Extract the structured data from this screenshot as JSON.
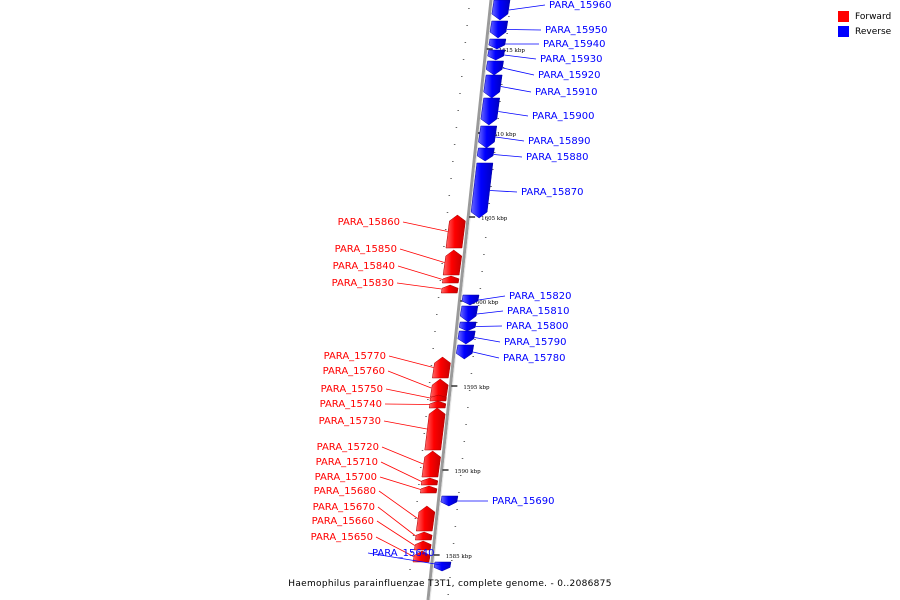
{
  "caption": "Haemophilus parainfluenzae T3T1, complete genome. - 0..2086875",
  "legend": [
    {
      "label": "Forward",
      "color": "#ff0000"
    },
    {
      "label": "Reverse",
      "color": "#0000ff"
    }
  ],
  "colors": {
    "forward": "#ff0000",
    "reverse": "#0000ff",
    "backbone": "#999999"
  },
  "ticks": [
    "1615 kbp",
    "1610 kbp",
    "1605 kbp",
    "1600 kbp",
    "1595 kbp",
    "1590 kbp",
    "1585 kbp"
  ],
  "genes": [
    {
      "label": "PARA_15960",
      "strand": "reverse"
    },
    {
      "label": "PARA_15950",
      "strand": "reverse"
    },
    {
      "label": "PARA_15940",
      "strand": "reverse"
    },
    {
      "label": "PARA_15930",
      "strand": "reverse"
    },
    {
      "label": "PARA_15920",
      "strand": "reverse"
    },
    {
      "label": "PARA_15910",
      "strand": "reverse"
    },
    {
      "label": "PARA_15900",
      "strand": "reverse"
    },
    {
      "label": "PARA_15890",
      "strand": "reverse"
    },
    {
      "label": "PARA_15880",
      "strand": "reverse"
    },
    {
      "label": "PARA_15870",
      "strand": "reverse"
    },
    {
      "label": "PARA_15860",
      "strand": "forward"
    },
    {
      "label": "PARA_15850",
      "strand": "forward"
    },
    {
      "label": "PARA_15840",
      "strand": "forward"
    },
    {
      "label": "PARA_15830",
      "strand": "forward"
    },
    {
      "label": "PARA_15820",
      "strand": "reverse"
    },
    {
      "label": "PARA_15810",
      "strand": "reverse"
    },
    {
      "label": "PARA_15800",
      "strand": "reverse"
    },
    {
      "label": "PARA_15790",
      "strand": "reverse"
    },
    {
      "label": "PARA_15780",
      "strand": "reverse"
    },
    {
      "label": "PARA_15770",
      "strand": "forward"
    },
    {
      "label": "PARA_15760",
      "strand": "forward"
    },
    {
      "label": "PARA_15750",
      "strand": "forward"
    },
    {
      "label": "PARA_15740",
      "strand": "forward"
    },
    {
      "label": "PARA_15730",
      "strand": "forward"
    },
    {
      "label": "PARA_15720",
      "strand": "forward"
    },
    {
      "label": "PARA_15710",
      "strand": "forward"
    },
    {
      "label": "PARA_15700",
      "strand": "forward"
    },
    {
      "label": "PARA_15690",
      "strand": "reverse"
    },
    {
      "label": "PARA_15680",
      "strand": "forward"
    },
    {
      "label": "PARA_15670",
      "strand": "forward"
    },
    {
      "label": "PARA_15660",
      "strand": "forward"
    },
    {
      "label": "PARA_15650",
      "strand": "forward"
    },
    {
      "label": "PARA_15640",
      "strand": "reverse"
    }
  ]
}
